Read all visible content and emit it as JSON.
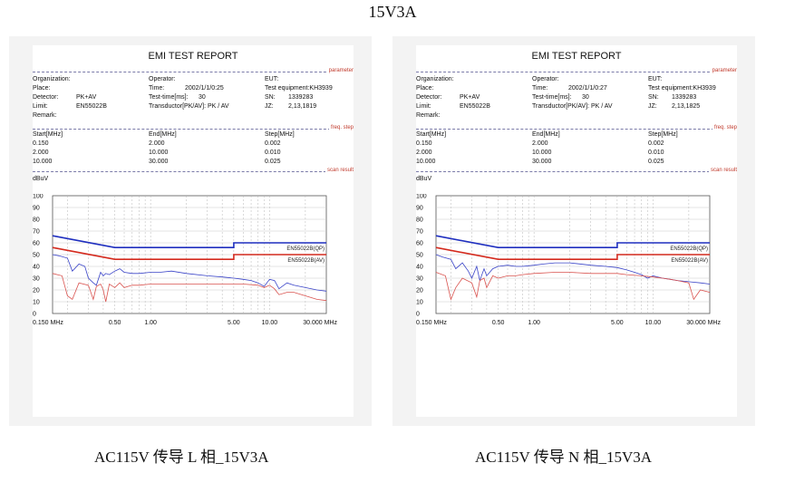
{
  "page_title": "15V3A",
  "reports": [
    {
      "caption": "AC115V 传导 L 相_15V3A",
      "title": "EMI TEST REPORT",
      "section_labels": {
        "parameter": "parameter",
        "freq_step": "freq. step",
        "scan_result": "scan result"
      },
      "params": {
        "organization": "Organization:",
        "place": "Place:",
        "detector_label": "Detector:",
        "detector_value": "PK+AV",
        "limit_label": "Limit:",
        "limit_value": "EN55022B",
        "remark": "Remark:",
        "operator": "Operator:",
        "time_label": "Time:",
        "time_value": "2002/1/1/0:25",
        "testtime_label": "Test-time[ms]:",
        "testtime_value": "30",
        "transducer": "Transductor[PK/AV]: PK / AV",
        "eut": "EUT:",
        "equipment": "Test equipment:KH3939",
        "sn_label": "SN:",
        "sn_value": "1339283",
        "jz_label": "JZ:",
        "jz_value": "2,13,1819"
      },
      "freq_headers": [
        "Start[MHz]",
        "End[MHz]",
        "Step[MHz]"
      ],
      "freq_rows": [
        [
          "0.150",
          "2.000",
          "0.002"
        ],
        [
          "2.000",
          "10.000",
          "0.010"
        ],
        [
          "10.000",
          "30.000",
          "0.025"
        ]
      ]
    },
    {
      "caption": "AC115V 传导 N 相_15V3A",
      "title": "EMI TEST REPORT",
      "section_labels": {
        "parameter": "parameter",
        "freq_step": "freq. step",
        "scan_result": "scan result"
      },
      "params": {
        "organization": "Organization:",
        "place": "Place:",
        "detector_label": "Detector:",
        "detector_value": "PK+AV",
        "limit_label": "Limit:",
        "limit_value": "EN55022B",
        "remark": "Remark:",
        "operator": "Operator:",
        "time_label": "Time:",
        "time_value": "2002/1/1/0:27",
        "testtime_label": "Test-time[ms]:",
        "testtime_value": "30",
        "transducer": "Transductor[PK/AV]: PK / AV",
        "eut": "EUT:",
        "equipment": "Test equipment:KH3939",
        "sn_label": "SN:",
        "sn_value": "1339283",
        "jz_label": "JZ:",
        "jz_value": "2,13,1825"
      },
      "freq_headers": [
        "Start[MHz]",
        "End[MHz]",
        "Step[MHz]"
      ],
      "freq_rows": [
        [
          "0.150",
          "2.000",
          "0.002"
        ],
        [
          "2.000",
          "10.000",
          "0.010"
        ],
        [
          "10.000",
          "30.000",
          "0.025"
        ]
      ]
    }
  ],
  "chart_data": [
    {
      "type": "line",
      "ylabel": "dBuV",
      "x_scale": "log",
      "xlim": [
        0.15,
        30
      ],
      "ylim": [
        0,
        100
      ],
      "y_ticks": [
        0,
        10,
        20,
        30,
        40,
        50,
        60,
        70,
        80,
        90,
        100
      ],
      "x_tick_labels": [
        {
          "x": 0.15,
          "label": "0.150 MHz"
        },
        {
          "x": 0.5,
          "label": "0.50"
        },
        {
          "x": 1,
          "label": "1.00"
        },
        {
          "x": 5,
          "label": "5.00"
        },
        {
          "x": 10,
          "label": "10.00"
        },
        {
          "x": 30,
          "label": "30.000 MHz"
        }
      ],
      "grid": true,
      "colors": {
        "qp_limit": "#1f2fbf",
        "av_limit": "#d42a1e",
        "pk_trace": "#3a44c8",
        "av_trace": "#d9534f"
      },
      "limit_lines": [
        {
          "name": "EN55022B(QP)",
          "x": [
            0.15,
            0.5,
            0.5,
            5,
            5,
            30
          ],
          "y": [
            66,
            56,
            56,
            56,
            60,
            60
          ]
        },
        {
          "name": "EN55022B(AV)",
          "x": [
            0.15,
            0.5,
            0.5,
            5,
            5,
            30
          ],
          "y": [
            56,
            46,
            46,
            46,
            50,
            50
          ]
        }
      ],
      "series": [
        {
          "x": [
            0.15,
            0.17,
            0.2,
            0.22,
            0.25,
            0.28,
            0.3,
            0.33,
            0.35,
            0.38,
            0.4,
            0.42,
            0.45,
            0.5,
            0.55,
            0.6,
            0.7,
            0.8,
            1,
            1.2,
            1.5,
            2,
            3,
            4,
            5,
            6,
            7,
            8,
            9,
            10,
            11,
            12,
            14,
            16,
            20,
            25,
            30
          ],
          "y": [
            50,
            49,
            47,
            36,
            42,
            40,
            30,
            26,
            24,
            35,
            32,
            34,
            33,
            36,
            38,
            35,
            34,
            34,
            35,
            35,
            36,
            34,
            32,
            31,
            30,
            29,
            28,
            26,
            23,
            29,
            28,
            21,
            26,
            24,
            22,
            20,
            19
          ]
        },
        {
          "x": [
            0.15,
            0.18,
            0.2,
            0.22,
            0.25,
            0.3,
            0.33,
            0.35,
            0.38,
            0.4,
            0.42,
            0.45,
            0.5,
            0.55,
            0.6,
            0.7,
            0.8,
            1,
            1.5,
            2,
            3,
            5,
            6,
            8,
            9,
            10,
            11,
            12,
            14,
            16,
            20,
            25,
            30
          ],
          "y": [
            34,
            32,
            15,
            12,
            26,
            24,
            12,
            23,
            25,
            20,
            10,
            25,
            22,
            26,
            22,
            24,
            24,
            25,
            25,
            25,
            25,
            25,
            25,
            24,
            22,
            24,
            21,
            16,
            18,
            18,
            15,
            12,
            11
          ]
        }
      ]
    },
    {
      "type": "line",
      "ylabel": "dBuV",
      "x_scale": "log",
      "xlim": [
        0.15,
        30
      ],
      "ylim": [
        0,
        100
      ],
      "y_ticks": [
        0,
        10,
        20,
        30,
        40,
        50,
        60,
        70,
        80,
        90,
        100
      ],
      "x_tick_labels": [
        {
          "x": 0.15,
          "label": "0.150 MHz"
        },
        {
          "x": 0.5,
          "label": "0.50"
        },
        {
          "x": 1,
          "label": "1.00"
        },
        {
          "x": 5,
          "label": "5.00"
        },
        {
          "x": 10,
          "label": "10.00"
        },
        {
          "x": 30,
          "label": "30.000 MHz"
        }
      ],
      "grid": true,
      "colors": {
        "qp_limit": "#1f2fbf",
        "av_limit": "#d42a1e",
        "pk_trace": "#3a44c8",
        "av_trace": "#d9534f"
      },
      "limit_lines": [
        {
          "name": "EN55022B(QP)",
          "x": [
            0.15,
            0.5,
            0.5,
            5,
            5,
            30
          ],
          "y": [
            66,
            56,
            56,
            56,
            60,
            60
          ]
        },
        {
          "name": "EN55022B(AV)",
          "x": [
            0.15,
            0.5,
            0.5,
            5,
            5,
            30
          ],
          "y": [
            56,
            46,
            46,
            46,
            50,
            50
          ]
        }
      ],
      "series": [
        {
          "x": [
            0.15,
            0.17,
            0.2,
            0.22,
            0.25,
            0.28,
            0.3,
            0.33,
            0.35,
            0.38,
            0.4,
            0.45,
            0.5,
            0.6,
            0.7,
            0.8,
            1,
            1.2,
            1.5,
            2,
            3,
            4,
            5,
            6,
            7,
            8,
            9,
            10,
            12,
            14,
            16,
            20,
            25,
            30
          ],
          "y": [
            50,
            48,
            46,
            38,
            43,
            36,
            30,
            40,
            28,
            38,
            32,
            38,
            40,
            41,
            40,
            40,
            41,
            42,
            43,
            43,
            41,
            40,
            39,
            37,
            35,
            33,
            30,
            32,
            30,
            29,
            28,
            27,
            26,
            25
          ]
        },
        {
          "x": [
            0.15,
            0.18,
            0.2,
            0.22,
            0.25,
            0.3,
            0.33,
            0.35,
            0.38,
            0.4,
            0.45,
            0.5,
            0.6,
            0.7,
            0.8,
            1,
            1.5,
            2,
            3,
            5,
            6,
            8,
            10,
            12,
            14,
            16,
            20,
            22,
            25,
            30
          ],
          "y": [
            35,
            32,
            12,
            22,
            30,
            26,
            14,
            28,
            30,
            22,
            32,
            30,
            32,
            32,
            33,
            34,
            35,
            35,
            34,
            34,
            33,
            32,
            31,
            30,
            29,
            28,
            26,
            12,
            20,
            18
          ]
        }
      ]
    }
  ]
}
